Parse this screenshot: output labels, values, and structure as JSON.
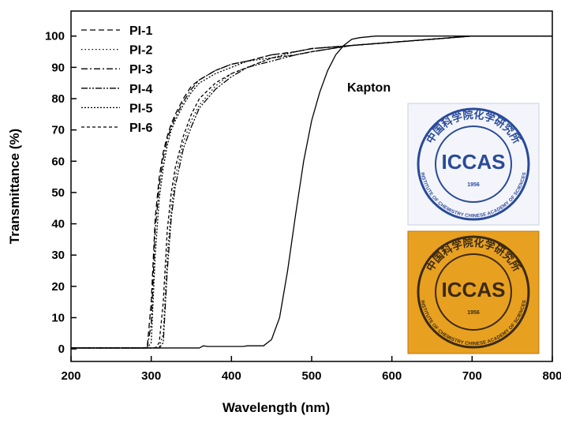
{
  "chart_data": {
    "type": "line",
    "xlabel": "Wavelength (nm)",
    "ylabel": "Transmittance (%)",
    "xlim": [
      200,
      800
    ],
    "ylim": [
      -4,
      108
    ],
    "xticks": [
      200,
      300,
      400,
      500,
      600,
      700,
      800
    ],
    "yticks": [
      0,
      10,
      20,
      30,
      40,
      50,
      60,
      70,
      80,
      90,
      100
    ],
    "legend": "upper left",
    "series": [
      {
        "name": "PI-1",
        "color": "#000000",
        "dash": "7 4",
        "legend": true,
        "x": [
          200,
          290,
          295,
          300,
          305,
          310,
          315,
          320,
          325,
          330,
          340,
          350,
          360,
          380,
          400,
          420,
          450,
          480,
          500,
          550,
          600,
          650,
          700,
          750,
          800
        ],
        "values": [
          0.3,
          0.3,
          0.5,
          15,
          42,
          55,
          63,
          68,
          72,
          75,
          80,
          84,
          86,
          89,
          91,
          92,
          94,
          95,
          96,
          97,
          98,
          99,
          100,
          100,
          100
        ]
      },
      {
        "name": "PI-2",
        "color": "#000000",
        "dash": "1.5 3",
        "legend": true,
        "x": [
          200,
          290,
          295,
          300,
          305,
          310,
          315,
          320,
          325,
          330,
          340,
          350,
          360,
          380,
          400,
          420,
          450,
          480,
          500,
          550,
          600,
          650,
          700,
          750,
          800
        ],
        "values": [
          0.3,
          0.3,
          0.3,
          0.3,
          0.3,
          0.5,
          5,
          30,
          45,
          55,
          66,
          73,
          78,
          84,
          88,
          90,
          93,
          94,
          95,
          97,
          98,
          99,
          100,
          100,
          100
        ]
      },
      {
        "name": "PI-3",
        "color": "#000000",
        "dash": "8 3 2 3",
        "legend": true,
        "x": [
          200,
          290,
          295,
          300,
          305,
          310,
          315,
          320,
          325,
          330,
          340,
          350,
          360,
          380,
          400,
          420,
          450,
          480,
          500,
          550,
          600,
          650,
          700,
          750,
          800
        ],
        "values": [
          0.3,
          0.3,
          0.3,
          8,
          38,
          52,
          61,
          67,
          71,
          74,
          79,
          83,
          86,
          89,
          91,
          92,
          94,
          95,
          96,
          97,
          98,
          99,
          100,
          100,
          100
        ]
      },
      {
        "name": "PI-4",
        "color": "#000000",
        "dash": "8 2 2 2 2 2",
        "legend": true,
        "x": [
          200,
          290,
          295,
          300,
          305,
          310,
          315,
          320,
          325,
          330,
          340,
          350,
          360,
          380,
          400,
          420,
          450,
          480,
          500,
          550,
          600,
          650,
          700,
          750,
          800
        ],
        "values": [
          0.3,
          0.3,
          0.3,
          0.3,
          0.3,
          0.3,
          2,
          25,
          42,
          52,
          64,
          71,
          77,
          83,
          87,
          90,
          92,
          94,
          95,
          97,
          98,
          99,
          100,
          100,
          100
        ]
      },
      {
        "name": "PI-5",
        "color": "#000000",
        "dash": "2 2",
        "legend": true,
        "x": [
          200,
          290,
          295,
          300,
          305,
          310,
          315,
          320,
          325,
          330,
          340,
          350,
          360,
          380,
          400,
          420,
          450,
          480,
          500,
          550,
          600,
          650,
          700,
          750,
          800
        ],
        "values": [
          0.3,
          0.3,
          0.3,
          2,
          30,
          48,
          58,
          65,
          70,
          73,
          78,
          82,
          85,
          88,
          90,
          92,
          93,
          95,
          96,
          97,
          98,
          99,
          100,
          100,
          100
        ]
      },
      {
        "name": "PI-6",
        "color": "#000000",
        "dash": "4 3",
        "legend": true,
        "x": [
          200,
          290,
          295,
          300,
          305,
          310,
          315,
          320,
          325,
          330,
          340,
          350,
          360,
          380,
          400,
          420,
          450,
          480,
          500,
          550,
          600,
          650,
          700,
          750,
          800
        ],
        "values": [
          0.3,
          0.3,
          0.3,
          0.3,
          0.3,
          2,
          15,
          38,
          50,
          58,
          68,
          75,
          80,
          85,
          88,
          90,
          93,
          94,
          95,
          97,
          98,
          99,
          100,
          100,
          100
        ]
      },
      {
        "name": "Kapton",
        "color": "#000000",
        "dash": "none",
        "legend": false,
        "x": [
          200,
          360,
          365,
          370,
          415,
          420,
          440,
          450,
          460,
          470,
          480,
          490,
          500,
          510,
          520,
          530,
          540,
          550,
          560,
          580,
          600,
          620,
          650,
          700,
          750,
          800
        ],
        "values": [
          0.3,
          0.3,
          1,
          0.8,
          0.8,
          1,
          1,
          3,
          10,
          25,
          43,
          60,
          73,
          82,
          89,
          94,
          97,
          99,
          99.5,
          100,
          100,
          100,
          100,
          100,
          100,
          100
        ]
      }
    ],
    "insets": [
      {
        "ring_text": "中国科学院化学研究所",
        "ring_text_2": "INSTITUTE OF CHEMISTRY  CHINESE ACADEMY OF SCIENCES",
        "label": "ICCAS",
        "year": "1956"
      },
      {
        "ring_text": "中国科学院化学研究所",
        "ring_text_2": "INSTITUTE OF CHEMISTRY  CHINESE ACADEMY OF SCIENCES",
        "label": "ICCAS",
        "year": "1956"
      }
    ]
  }
}
